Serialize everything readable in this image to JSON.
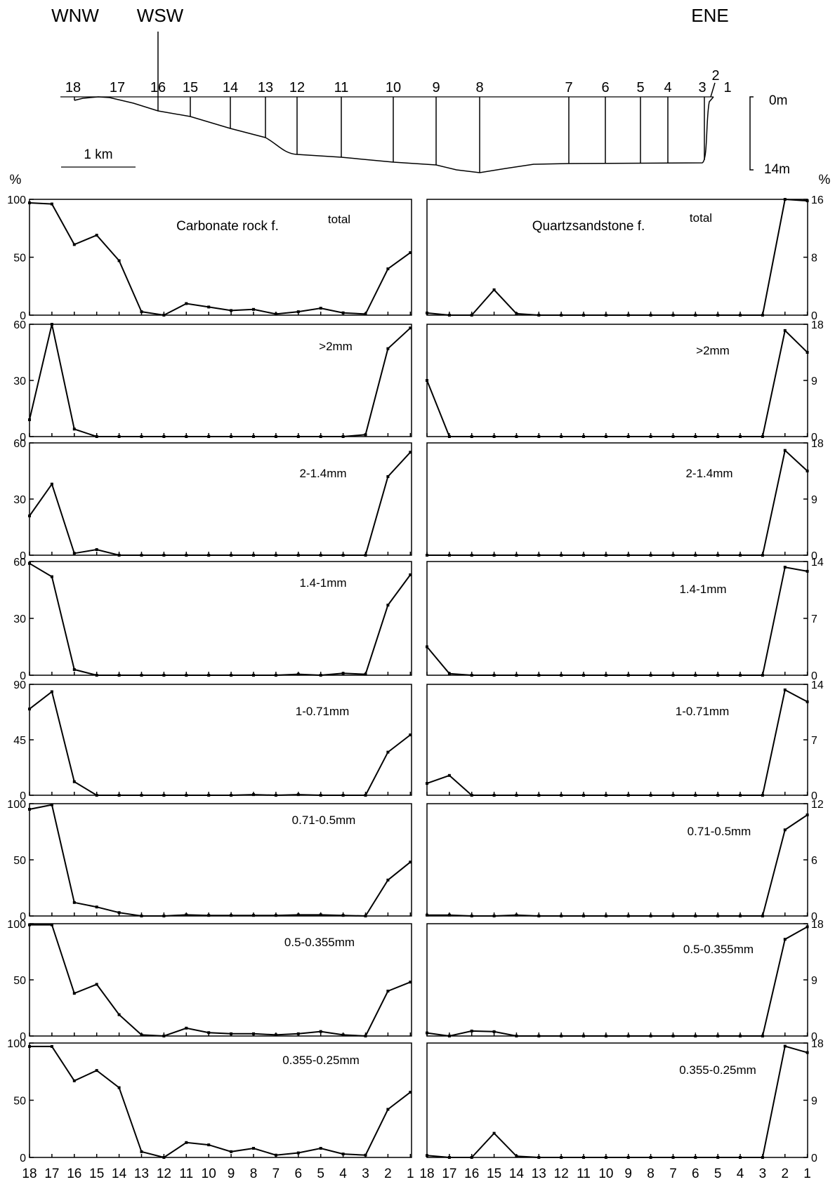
{
  "profile": {
    "directions": [
      "WNW",
      "WSW",
      "ENE"
    ],
    "stations": [
      "18",
      "17",
      "16",
      "15",
      "14",
      "13",
      "12",
      "11",
      "10",
      "9",
      "8",
      "7",
      "6",
      "5",
      "4",
      "3",
      "2",
      "1"
    ],
    "depth_top": "0m",
    "depth_bottom": "14m",
    "scale_label": "1 km"
  },
  "percent_label": "%",
  "x_labels": [
    "18",
    "17",
    "16",
    "15",
    "14",
    "13",
    "12",
    "11",
    "10",
    "9",
    "8",
    "7",
    "6",
    "5",
    "4",
    "3",
    "2",
    "1"
  ],
  "chart_data": [
    {
      "type": "line",
      "panel": "left",
      "label": "total",
      "title": "Carbonate rock f.",
      "ylim": [
        0,
        100
      ],
      "yticks": [
        "0",
        "50",
        "100"
      ],
      "values": [
        97,
        96,
        61,
        69,
        47,
        3,
        0,
        10,
        7,
        4,
        5,
        1,
        3,
        6,
        2,
        1,
        40,
        54
      ]
    },
    {
      "type": "line",
      "panel": "right",
      "label": "total",
      "title": "Quartzsandstone f.",
      "ylim": [
        0,
        16
      ],
      "yticks": [
        "0",
        "8",
        "16"
      ],
      "values": [
        0.3,
        0,
        0,
        3.5,
        0.2,
        0,
        0,
        0,
        0,
        0,
        0,
        0,
        0,
        0,
        0,
        0,
        16,
        15.8
      ]
    },
    {
      "type": "line",
      "panel": "left",
      "label": ">2mm",
      "ylim": [
        0,
        60
      ],
      "yticks": [
        "0",
        "30",
        "60"
      ],
      "values": [
        9,
        60,
        4,
        0,
        0,
        0,
        0,
        0,
        0,
        0,
        0,
        0,
        0,
        0,
        0,
        1,
        47,
        58
      ]
    },
    {
      "type": "line",
      "panel": "right",
      "label": ">2mm",
      "ylim": [
        0,
        18
      ],
      "yticks": [
        "0",
        "9",
        "18"
      ],
      "values": [
        9,
        0,
        0,
        0,
        0,
        0,
        0,
        0,
        0,
        0,
        0,
        0,
        0,
        0,
        0,
        0,
        17,
        13.5
      ]
    },
    {
      "type": "line",
      "panel": "left",
      "label": "2-1.4mm",
      "ylim": [
        0,
        60
      ],
      "yticks": [
        "0",
        "30",
        "60"
      ],
      "values": [
        21,
        38,
        1,
        3,
        0,
        0,
        0,
        0,
        0,
        0,
        0,
        0,
        0,
        0,
        0,
        0,
        42,
        55
      ]
    },
    {
      "type": "line",
      "panel": "right",
      "label": "2-1.4mm",
      "ylim": [
        0,
        18
      ],
      "yticks": [
        "0",
        "9",
        "18"
      ],
      "values": [
        0,
        0,
        0,
        0,
        0,
        0,
        0,
        0,
        0,
        0,
        0,
        0,
        0,
        0,
        0,
        0,
        16.8,
        13.5
      ]
    },
    {
      "type": "line",
      "panel": "left",
      "label": "1.4-1mm",
      "ylim": [
        0,
        60
      ],
      "yticks": [
        "0",
        "30",
        "60"
      ],
      "values": [
        59,
        52,
        3,
        0,
        0,
        0,
        0,
        0,
        0,
        0,
        0,
        0,
        0.5,
        0,
        1,
        0.5,
        37,
        53
      ]
    },
    {
      "type": "line",
      "panel": "right",
      "label": "1.4-1mm",
      "ylim": [
        0,
        14
      ],
      "yticks": [
        "0",
        "7",
        "14"
      ],
      "values": [
        3.5,
        0.2,
        0,
        0,
        0,
        0,
        0,
        0,
        0,
        0,
        0,
        0,
        0,
        0,
        0,
        0,
        13.3,
        12.8
      ]
    },
    {
      "type": "line",
      "panel": "left",
      "label": "1-0.71mm",
      "ylim": [
        0,
        90
      ],
      "yticks": [
        "0",
        "45",
        "90"
      ],
      "values": [
        70,
        84,
        11,
        0,
        0,
        0,
        0,
        0,
        0,
        0,
        0.5,
        0,
        0.5,
        0,
        0,
        0,
        35,
        49
      ]
    },
    {
      "type": "line",
      "panel": "right",
      "label": "1-0.71mm",
      "ylim": [
        0,
        14
      ],
      "yticks": [
        "0",
        "7",
        "14"
      ],
      "values": [
        1.5,
        2.5,
        0,
        0,
        0,
        0,
        0,
        0,
        0,
        0,
        0,
        0,
        0,
        0,
        0,
        0,
        13.3,
        11.8
      ]
    },
    {
      "type": "line",
      "panel": "left",
      "label": "0.71-0.5mm",
      "ylim": [
        0,
        100
      ],
      "yticks": [
        "0",
        "50",
        "100"
      ],
      "values": [
        95,
        99,
        12,
        8,
        3,
        0,
        0,
        1,
        0.5,
        0.5,
        0.5,
        0.5,
        1,
        1,
        0.5,
        0,
        32,
        48
      ]
    },
    {
      "type": "line",
      "panel": "right",
      "label": "0.71-0.5mm",
      "ylim": [
        0,
        12
      ],
      "yticks": [
        "0",
        "6",
        "12"
      ],
      "values": [
        0.1,
        0.1,
        0,
        0,
        0.1,
        0,
        0,
        0,
        0,
        0,
        0,
        0,
        0,
        0,
        0,
        0,
        9.2,
        10.8
      ]
    },
    {
      "type": "line",
      "panel": "left",
      "label": "0.5-0.355mm",
      "ylim": [
        0,
        100
      ],
      "yticks": [
        "0",
        "50",
        "100"
      ],
      "values": [
        99,
        99,
        38,
        46,
        19,
        1,
        0,
        7,
        3,
        2,
        2,
        1,
        2,
        4,
        1,
        0,
        40,
        48
      ]
    },
    {
      "type": "line",
      "panel": "right",
      "label": "0.5-0.355mm",
      "ylim": [
        0,
        18
      ],
      "yticks": [
        "0",
        "9",
        "18"
      ],
      "values": [
        0.5,
        0,
        0.8,
        0.7,
        0,
        0,
        0,
        0,
        0,
        0,
        0,
        0,
        0,
        0,
        0,
        0,
        15.5,
        17.5
      ]
    },
    {
      "type": "line",
      "panel": "left",
      "label": "0.355-0.25mm",
      "ylim": [
        0,
        100
      ],
      "yticks": [
        "0",
        "50",
        "100"
      ],
      "values": [
        97,
        97,
        67,
        76,
        61,
        5,
        0,
        13,
        11,
        5,
        8,
        2,
        4,
        8,
        3,
        2,
        42,
        57
      ]
    },
    {
      "type": "line",
      "panel": "right",
      "label": "0.355-0.25mm",
      "ylim": [
        0,
        18
      ],
      "yticks": [
        "0",
        "9",
        "18"
      ],
      "values": [
        0.3,
        0,
        0,
        3.8,
        0.2,
        0,
        0,
        0,
        0,
        0,
        0,
        0,
        0,
        0,
        0,
        0,
        17.5,
        16.5
      ]
    }
  ]
}
